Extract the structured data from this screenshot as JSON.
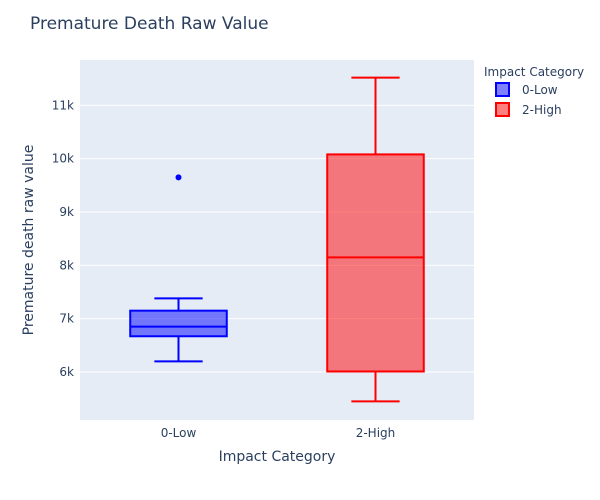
{
  "chart_data": {
    "type": "box",
    "title": "Premature Death Raw Value",
    "xlabel": "Impact Category",
    "ylabel": "Premature death raw value",
    "categories": [
      "0-Low",
      "2-High"
    ],
    "ylim": [
      5100,
      11850
    ],
    "yticks": [
      6000,
      7000,
      8000,
      9000,
      10000,
      11000
    ],
    "ytick_labels": [
      "6k",
      "7k",
      "8k",
      "9k",
      "10k",
      "11k"
    ],
    "grid": true,
    "legend": {
      "title": "Impact Category",
      "placement": "right",
      "entries": [
        "0-Low",
        "2-High"
      ]
    },
    "series": [
      {
        "name": "0-Low",
        "category": "0-Low",
        "min": 6200,
        "q1": 6670,
        "median": 6850,
        "q3": 7150,
        "max": 7380,
        "outliers": [
          9650
        ],
        "line_color": "#0000ff",
        "fill_color": "rgba(0,0,255,0.5)"
      },
      {
        "name": "2-High",
        "category": "2-High",
        "min": 5450,
        "q1": 6010,
        "median": 8150,
        "q3": 10080,
        "max": 11520,
        "outliers": [],
        "line_color": "#ff0000",
        "fill_color": "rgba(255,0,0,0.5)"
      }
    ],
    "colors": {
      "plot_bg": "#e5ecf6",
      "grid": "#ffffff",
      "text": "#2a3f5f"
    }
  }
}
